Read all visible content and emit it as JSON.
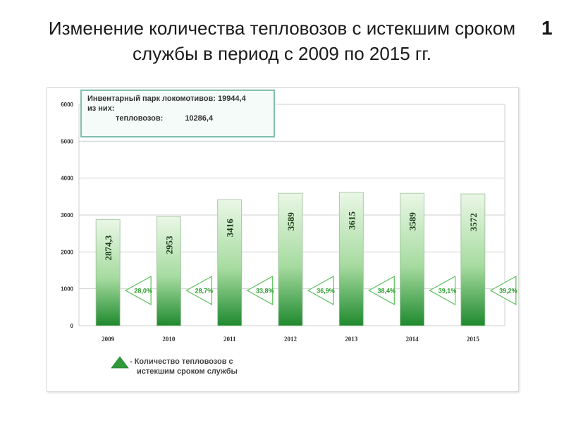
{
  "slide": {
    "title_line1": "Изменение количества тепловозов с истекшим сроком",
    "title_line2": "службы в период с 2009 по 2015 гг.",
    "slide_number": "1"
  },
  "info_box": {
    "line1": "Инвентарный парк локомотивов: 19944,4",
    "line2": "из них:",
    "line3_label": "тепловозов:",
    "line3_value": "10286,4"
  },
  "legend": {
    "line1": "- Количество тепловозов с",
    "line2": "истекшим сроком службы"
  },
  "colors": {
    "bar_top": "#eaf7e6",
    "bar_bottom": "#1f8a2e",
    "triangle_fill": "#ffffff",
    "triangle_stroke": "#5cbf5c",
    "percent_text": "#2a9d2a",
    "grid": "#cfcfcf"
  },
  "chart_data": {
    "type": "bar",
    "categories": [
      "2009",
      "2010",
      "2011",
      "2012",
      "2013",
      "2014",
      "2015"
    ],
    "values": [
      2874.3,
      2953,
      3416,
      3589,
      3615,
      3589,
      3572
    ],
    "value_labels": [
      "2874,3",
      "2953",
      "3416",
      "3589",
      "3615",
      "3589",
      "3572"
    ],
    "percent_labels": [
      "28,0%",
      "28,7%",
      "33,8%",
      "36,9%",
      "38,4%",
      "39,1%",
      "39,2%"
    ],
    "yticks": [
      "0",
      "1000",
      "2000",
      "3000",
      "4000",
      "5000",
      "6000"
    ],
    "ylim": [
      0,
      6000
    ],
    "grid": true,
    "legend_position": "bottom-left"
  }
}
